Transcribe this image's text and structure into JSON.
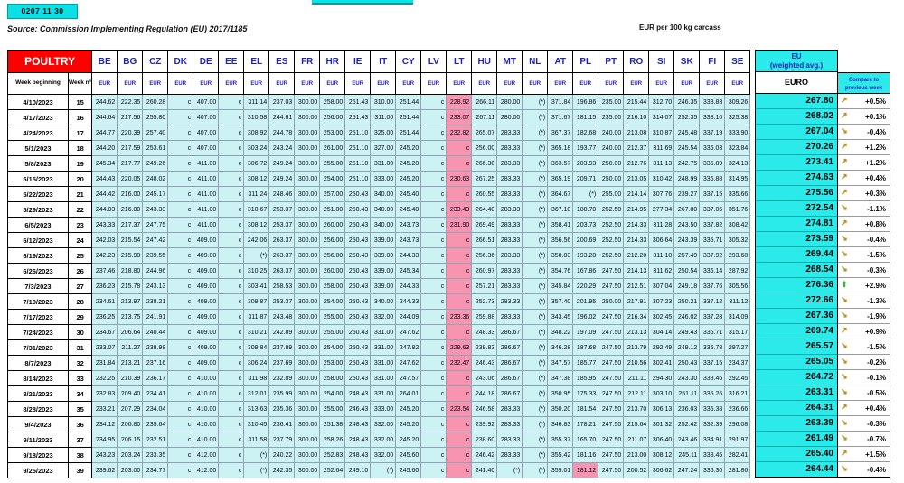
{
  "badge": "0207 11 30",
  "source": "Source: Commission Implementing Regulation (EU) 2017/1185",
  "unit": "EUR per 100 kg carcass",
  "colors": {
    "aqua": "#2aeaea",
    "cell_cyan": "#cdf2f4",
    "pink": "#f794b0",
    "header_red": "#ff0000",
    "header_blue": "#2222bb",
    "arrow_gold": "#c08a1e",
    "arrow_green": "#3fae3f"
  },
  "table": {
    "title": "POULTRY",
    "week_beginning_label": "Week beginning",
    "week_no_label": "Week n°",
    "currency_label": "EUR",
    "countries": [
      "BE",
      "BG",
      "CZ",
      "DK",
      "DE",
      "EE",
      "EL",
      "ES",
      "FR",
      "HR",
      "IE",
      "IT",
      "CY",
      "LV",
      "LT",
      "HU",
      "MT",
      "NL",
      "AT",
      "PL",
      "PT",
      "RO",
      "SI",
      "SK",
      "FI",
      "SE"
    ],
    "pink_column": "LT",
    "rows": [
      {
        "date": "4/10/2023",
        "week": "15",
        "values": [
          "244.62",
          "222.35",
          "260.28",
          "c",
          "407.00",
          "c",
          "311.14",
          "237.03",
          "300.00",
          "258.00",
          "251.43",
          "310.00",
          "251.44",
          "c",
          "228.92",
          "266.11",
          "280.00",
          "(*)",
          "371.84",
          "196.86",
          "235.00",
          "215.44",
          "312.70",
          "246.35",
          "338.83",
          "309.26"
        ]
      },
      {
        "date": "4/17/2023",
        "week": "16",
        "values": [
          "244.64",
          "217.56",
          "255.80",
          "c",
          "407.00",
          "c",
          "310.58",
          "244.61",
          "300.00",
          "256.00",
          "251.43",
          "311.00",
          "251.44",
          "c",
          "233.07",
          "267.11",
          "280.00",
          "(*)",
          "371.67",
          "181.15",
          "235.00",
          "216.10",
          "314.07",
          "252.35",
          "338.10",
          "325.38"
        ]
      },
      {
        "date": "4/24/2023",
        "week": "17",
        "values": [
          "244.77",
          "220.39",
          "257.40",
          "c",
          "407.00",
          "c",
          "308.92",
          "244.78",
          "300.00",
          "253.00",
          "251.10",
          "325.00",
          "251.44",
          "c",
          "232.82",
          "265.07",
          "283.33",
          "(*)",
          "367.37",
          "182.68",
          "240.00",
          "213.08",
          "310.87",
          "245.48",
          "337.19",
          "333.90"
        ]
      },
      {
        "date": "5/1/2023",
        "week": "18",
        "values": [
          "244.20",
          "217.59",
          "253.61",
          "c",
          "407.00",
          "c",
          "303.24",
          "243.24",
          "300.00",
          "261.00",
          "251.10",
          "327.00",
          "245.20",
          "c",
          "c",
          "256.00",
          "283.33",
          "(*)",
          "365.18",
          "193.77",
          "240.00",
          "212.37",
          "311.69",
          "245.54",
          "336.03",
          "323.84"
        ]
      },
      {
        "date": "5/8/2023",
        "week": "19",
        "values": [
          "245.34",
          "217.77",
          "249.26",
          "c",
          "411.00",
          "c",
          "306.72",
          "249.24",
          "300.00",
          "255.00",
          "251.10",
          "331.00",
          "245.20",
          "c",
          "c",
          "266.30",
          "283.33",
          "(*)",
          "363.57",
          "203.93",
          "250.00",
          "212.76",
          "311.13",
          "242.75",
          "335.89",
          "324.13"
        ]
      },
      {
        "date": "5/15/2023",
        "week": "20",
        "values": [
          "244.43",
          "220.05",
          "248.02",
          "c",
          "411.00",
          "c",
          "308.12",
          "249.24",
          "300.00",
          "254.00",
          "251.10",
          "333.00",
          "245.20",
          "c",
          "230.63",
          "267.25",
          "283.33",
          "(*)",
          "365.19",
          "209.71",
          "250.00",
          "213.05",
          "310.42",
          "248.99",
          "336.88",
          "314.95"
        ]
      },
      {
        "date": "5/22/2023",
        "week": "21",
        "values": [
          "244.42",
          "216.00",
          "245.17",
          "c",
          "411.00",
          "c",
          "311.24",
          "248.46",
          "300.00",
          "257.00",
          "250.43",
          "340.00",
          "245.40",
          "c",
          "c",
          "260.55",
          "283.33",
          "(*)",
          "364.67",
          "(*)",
          "255.00",
          "214.14",
          "307.76",
          "239.27",
          "337.15",
          "335.66"
        ]
      },
      {
        "date": "5/29/2023",
        "week": "22",
        "values": [
          "244.03",
          "216.00",
          "243.33",
          "c",
          "411.00",
          "c",
          "310.67",
          "253.37",
          "300.00",
          "251.00",
          "250.43",
          "340.00",
          "245.40",
          "c",
          "233.43",
          "264.40",
          "283.33",
          "(*)",
          "367.10",
          "188.70",
          "252.50",
          "214.95",
          "277.34",
          "267.80",
          "337.05",
          "351.76"
        ]
      },
      {
        "date": "6/5/2023",
        "week": "23",
        "values": [
          "243.33",
          "217.37",
          "247.75",
          "c",
          "411.00",
          "c",
          "308.12",
          "253.37",
          "300.00",
          "260.00",
          "250.43",
          "340.00",
          "243.73",
          "c",
          "231.90",
          "269.49",
          "283.33",
          "(*)",
          "358.41",
          "203.73",
          "252.50",
          "214.33",
          "311.28",
          "243.50",
          "337.82",
          "308.42"
        ]
      },
      {
        "date": "6/12/2023",
        "week": "24",
        "values": [
          "242.03",
          "215.54",
          "247.42",
          "c",
          "409.00",
          "c",
          "242.06",
          "263.37",
          "300.00",
          "256.00",
          "250.43",
          "339.00",
          "243.73",
          "c",
          "c",
          "266.51",
          "283.33",
          "(*)",
          "356.56",
          "200.69",
          "252.50",
          "214.33",
          "306.64",
          "243.39",
          "335.71",
          "305.32"
        ]
      },
      {
        "date": "6/19/2023",
        "week": "25",
        "values": [
          "242.23",
          "215.98",
          "239.55",
          "c",
          "409.00",
          "c",
          "(*)",
          "263.37",
          "300.00",
          "256.00",
          "250.43",
          "339.00",
          "244.33",
          "c",
          "c",
          "256.36",
          "283.33",
          "(*)",
          "350.83",
          "193.28",
          "252.50",
          "212.20",
          "311.10",
          "257.49",
          "337.92",
          "293.68"
        ]
      },
      {
        "date": "6/26/2023",
        "week": "26",
        "values": [
          "237.46",
          "218.80",
          "244.96",
          "c",
          "409.00",
          "c",
          "310.25",
          "263.37",
          "300.00",
          "260.00",
          "250.43",
          "339.00",
          "245.34",
          "c",
          "c",
          "260.97",
          "283.33",
          "(*)",
          "354.76",
          "167.86",
          "247.50",
          "214.13",
          "311.62",
          "250.54",
          "336.14",
          "287.92"
        ]
      },
      {
        "date": "7/3/2023",
        "week": "27",
        "values": [
          "236.23",
          "215.78",
          "243.13",
          "c",
          "409.00",
          "c",
          "303.41",
          "258.53",
          "300.00",
          "258.00",
          "250.43",
          "339.00",
          "244.33",
          "c",
          "c",
          "257.21",
          "283.33",
          "(*)",
          "345.84",
          "220.29",
          "247.50",
          "212.51",
          "307.04",
          "249.18",
          "337.76",
          "305.56"
        ]
      },
      {
        "date": "7/10/2023",
        "week": "28",
        "values": [
          "234.61",
          "213.97",
          "238.21",
          "c",
          "409.00",
          "c",
          "309.87",
          "253.37",
          "300.00",
          "254.00",
          "250.43",
          "340.00",
          "244.33",
          "c",
          "c",
          "252.73",
          "283.33",
          "(*)",
          "357.40",
          "201.95",
          "250.00",
          "217.91",
          "307.23",
          "250.21",
          "337.12",
          "311.12"
        ]
      },
      {
        "date": "7/17/2023",
        "week": "29",
        "values": [
          "236.25",
          "213.75",
          "241.91",
          "c",
          "409.00",
          "c",
          "311.87",
          "243.48",
          "300.00",
          "255.00",
          "250.43",
          "332.00",
          "244.09",
          "c",
          "233.36",
          "259.88",
          "283.33",
          "(*)",
          "343.45",
          "196.02",
          "247.50",
          "216.34",
          "302.45",
          "246.02",
          "337.28",
          "314.09"
        ]
      },
      {
        "date": "7/24/2023",
        "week": "30",
        "values": [
          "234.67",
          "206.64",
          "240.44",
          "c",
          "409.00",
          "c",
          "310.21",
          "242.89",
          "300.00",
          "255.00",
          "250.43",
          "331.00",
          "247.62",
          "c",
          "c",
          "248.33",
          "286.67",
          "(*)",
          "348.22",
          "197.09",
          "247.50",
          "213.13",
          "304.14",
          "249.43",
          "336.71",
          "315.17"
        ]
      },
      {
        "date": "7/31/2023",
        "week": "31",
        "values": [
          "233.07",
          "211.27",
          "238.98",
          "c",
          "409.00",
          "c",
          "309.84",
          "237.89",
          "300.00",
          "254.00",
          "250.43",
          "331.00",
          "247.82",
          "c",
          "229.63",
          "239.83",
          "286.67",
          "(*)",
          "346.28",
          "187.68",
          "247.50",
          "213.79",
          "292.49",
          "249.12",
          "335.78",
          "297.27"
        ]
      },
      {
        "date": "8/7/2023",
        "week": "32",
        "values": [
          "231.84",
          "213.21",
          "237.16",
          "c",
          "409.00",
          "c",
          "306.24",
          "237.69",
          "300.00",
          "253.00",
          "250.43",
          "331.00",
          "247.62",
          "c",
          "232.47",
          "246.43",
          "286.67",
          "(*)",
          "347.57",
          "185.77",
          "247.50",
          "210.56",
          "302.41",
          "250.43",
          "337.15",
          "234.37"
        ]
      },
      {
        "date": "8/14/2023",
        "week": "33",
        "values": [
          "232.25",
          "210.39",
          "236.17",
          "c",
          "410.00",
          "c",
          "311.98",
          "232.89",
          "300.00",
          "258.00",
          "250.43",
          "331.00",
          "247.57",
          "c",
          "c",
          "243.06",
          "286.67",
          "(*)",
          "347.38",
          "185.95",
          "247.50",
          "211.11",
          "294.30",
          "243.30",
          "338.46",
          "292.45"
        ]
      },
      {
        "date": "8/21/2023",
        "week": "34",
        "values": [
          "232.83",
          "209.40",
          "234.41",
          "c",
          "410.00",
          "c",
          "312.01",
          "235.99",
          "300.00",
          "254.00",
          "248.43",
          "331.00",
          "264.01",
          "c",
          "c",
          "244.18",
          "286.67",
          "(*)",
          "350.95",
          "175.33",
          "247.50",
          "212.11",
          "303.10",
          "251.11",
          "335.26",
          "316.21"
        ]
      },
      {
        "date": "8/28/2023",
        "week": "35",
        "values": [
          "233.21",
          "207.29",
          "234.04",
          "c",
          "410.00",
          "c",
          "313.63",
          "235.36",
          "300.00",
          "255.00",
          "246.43",
          "333.00",
          "245.20",
          "c",
          "223.54",
          "246.58",
          "283.33",
          "(*)",
          "350.20",
          "181.54",
          "247.50",
          "213.70",
          "306.13",
          "236.03",
          "335.38",
          "236.66"
        ]
      },
      {
        "date": "9/4/2023",
        "week": "36",
        "values": [
          "234.12",
          "206.80",
          "235.64",
          "c",
          "410.00",
          "c",
          "310.45",
          "236.41",
          "300.00",
          "251.38",
          "248.43",
          "332.00",
          "245.20",
          "c",
          "c",
          "239.92",
          "283.33",
          "(*)",
          "346.83",
          "178.21",
          "247.50",
          "215.64",
          "301.32",
          "252.42",
          "332.39",
          "296.08"
        ]
      },
      {
        "date": "9/11/2023",
        "week": "37",
        "values": [
          "234.95",
          "206.15",
          "232.51",
          "c",
          "410.00",
          "c",
          "311.58",
          "237.79",
          "300.00",
          "258.26",
          "248.43",
          "332.00",
          "245.20",
          "c",
          "c",
          "238.60",
          "283.33",
          "(*)",
          "355.37",
          "165.70",
          "247.50",
          "211.07",
          "306.40",
          "243.46",
          "334.91",
          "291.97"
        ]
      },
      {
        "date": "9/18/2023",
        "week": "38",
        "values": [
          "243.23",
          "203.24",
          "233.35",
          "c",
          "412.00",
          "c",
          "(*)",
          "240.22",
          "300.00",
          "252.83",
          "248.43",
          "332.00",
          "245.60",
          "c",
          "c",
          "246.42",
          "283.33",
          "(*)",
          "355.42",
          "181.16",
          "247.50",
          "213.00",
          "308.12",
          "245.11",
          "338.45",
          "282.41"
        ]
      },
      {
        "date": "9/25/2023",
        "week": "39",
        "values": [
          "239.62",
          "203.00",
          "234.77",
          "c",
          "412.00",
          "c",
          "(*)",
          "242.35",
          "300.00",
          "252.64",
          "249.10",
          "(*)",
          "245.60",
          "c",
          "c",
          "241.40",
          "(*)",
          "(*)",
          "359.01",
          "181.12",
          "247.50",
          "200.52",
          "306.62",
          "247.24",
          "335.30",
          "281.86"
        ],
        "extra_pink": [
          "PL"
        ]
      }
    ]
  },
  "eu_panel": {
    "title_line1": "EU",
    "title_line2": "(weighted avg.)",
    "currency_header": "EURO",
    "compare_header_line1": "Compare to",
    "compare_header_line2": "previous week",
    "icons": {
      "up": "↗",
      "down": "↘",
      "surge": "⬆"
    },
    "rows": [
      {
        "euro": "267.80",
        "pct": "+0.5%",
        "dir": "up"
      },
      {
        "euro": "268.02",
        "pct": "+0.1%",
        "dir": "up"
      },
      {
        "euro": "267.04",
        "pct": "-0.4%",
        "dir": "down"
      },
      {
        "euro": "270.26",
        "pct": "+1.2%",
        "dir": "up"
      },
      {
        "euro": "273.41",
        "pct": "+1.2%",
        "dir": "up"
      },
      {
        "euro": "274.63",
        "pct": "+0.4%",
        "dir": "up"
      },
      {
        "euro": "275.56",
        "pct": "+0.3%",
        "dir": "up"
      },
      {
        "euro": "272.54",
        "pct": "-1.1%",
        "dir": "down"
      },
      {
        "euro": "274.81",
        "pct": "+0.8%",
        "dir": "up"
      },
      {
        "euro": "273.59",
        "pct": "-0.4%",
        "dir": "down"
      },
      {
        "euro": "269.44",
        "pct": "-1.5%",
        "dir": "down"
      },
      {
        "euro": "268.54",
        "pct": "-0.3%",
        "dir": "down"
      },
      {
        "euro": "276.36",
        "pct": "+2.9%",
        "dir": "surge"
      },
      {
        "euro": "272.66",
        "pct": "-1.3%",
        "dir": "down"
      },
      {
        "euro": "267.36",
        "pct": "-1.9%",
        "dir": "down"
      },
      {
        "euro": "269.74",
        "pct": "+0.9%",
        "dir": "up"
      },
      {
        "euro": "265.57",
        "pct": "-1.5%",
        "dir": "down"
      },
      {
        "euro": "265.05",
        "pct": "-0.2%",
        "dir": "down"
      },
      {
        "euro": "264.72",
        "pct": "-0.1%",
        "dir": "down"
      },
      {
        "euro": "263.31",
        "pct": "-0.5%",
        "dir": "down"
      },
      {
        "euro": "264.31",
        "pct": "+0.4%",
        "dir": "up"
      },
      {
        "euro": "263.39",
        "pct": "-0.3%",
        "dir": "down"
      },
      {
        "euro": "261.49",
        "pct": "-0.7%",
        "dir": "down"
      },
      {
        "euro": "265.40",
        "pct": "+1.5%",
        "dir": "up"
      },
      {
        "euro": "264.44",
        "pct": "-0.4%",
        "dir": "down"
      }
    ]
  }
}
